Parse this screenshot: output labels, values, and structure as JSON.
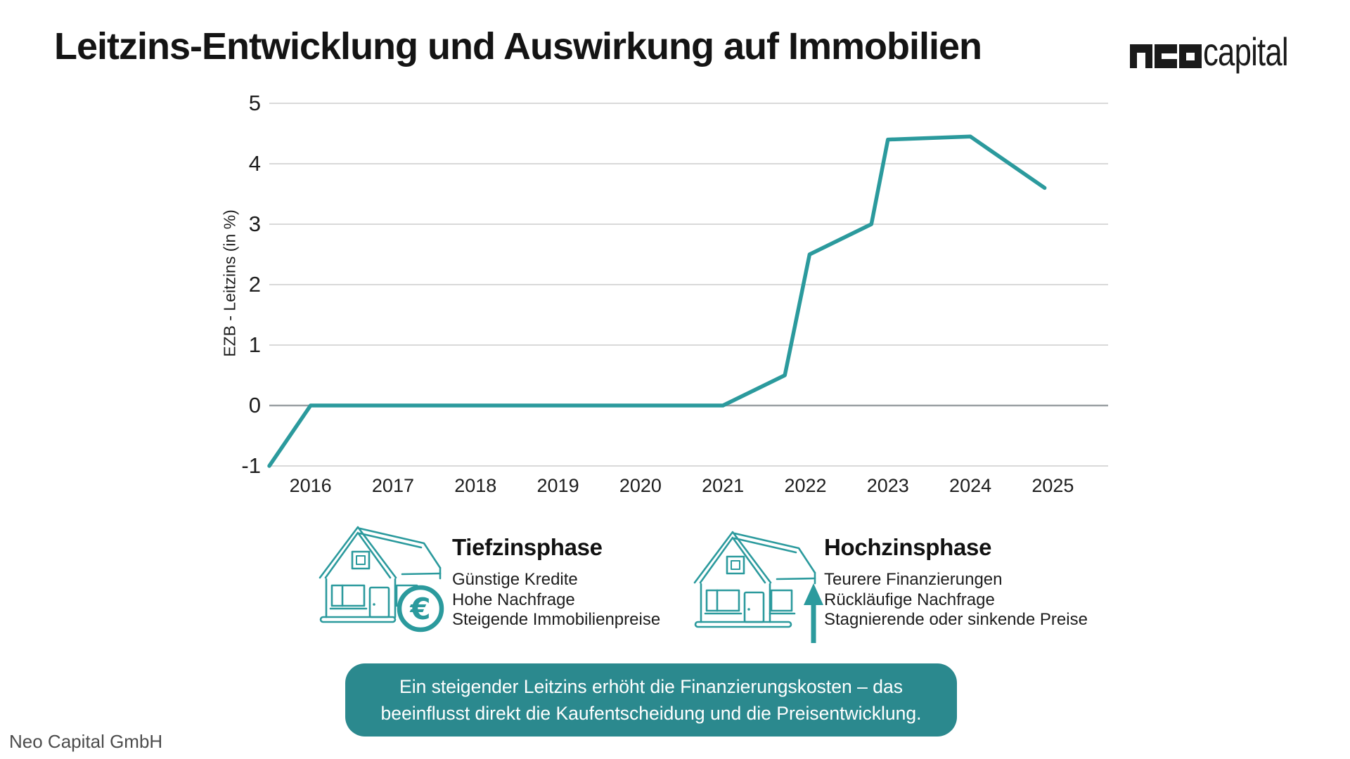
{
  "page": {
    "title": "Leitzins-Entwicklung und Auswirkung auf Immobilien",
    "footer": "Neo Capital GmbH"
  },
  "logo": {
    "mark": "neo",
    "text": "capital"
  },
  "icons": {
    "euro_symbol": "€",
    "house_low": "house-with-euro-coin",
    "house_high": "house-with-rising-arrow"
  },
  "chart_data": {
    "type": "line",
    "ylabel": "EZB - Leitzins (in %)",
    "xlabel": "",
    "x_ticks": [
      "2016",
      "2017",
      "2018",
      "2019",
      "2020",
      "2021",
      "2022",
      "2023",
      "2024",
      "2025"
    ],
    "y_ticks": [
      5,
      4,
      3,
      2,
      1,
      0,
      -1
    ],
    "xlim": [
      2015.5,
      2025.67
    ],
    "ylim": [
      -1,
      5
    ],
    "grid": true,
    "legend": false,
    "series": [
      {
        "color": "#2b9a9d",
        "points": [
          [
            2015.5,
            -1
          ],
          [
            2016,
            0
          ],
          [
            2021,
            0
          ],
          [
            2021.75,
            0.5
          ],
          [
            2022.05,
            2.5
          ],
          [
            2022.8,
            3.0
          ],
          [
            2023,
            4.4
          ],
          [
            2024,
            4.45
          ],
          [
            2024.9,
            3.6
          ]
        ]
      }
    ]
  },
  "phases": {
    "low": {
      "heading": "Tiefzinsphase",
      "items": [
        "Günstige Kredite",
        "Hohe Nachfrage",
        "Steigende Immobilienpreise"
      ]
    },
    "high": {
      "heading": "Hochzinsphase",
      "items": [
        "Teurere Finanzierungen",
        "Rückläufige Nachfrage",
        "Stagnierende oder sinkende Preise"
      ]
    }
  },
  "callout": {
    "line1": "Ein steigender Leitzins erhöht die Finanzierungskosten – das",
    "line2": "beeinflusst direkt die Kaufentscheidung und die Preisentwicklung."
  },
  "colors": {
    "accent": "#2b9a9d",
    "callout_bg": "#2b898e",
    "grid": "#d9d9d9",
    "zero_line": "#9aa0a3",
    "text": "#1c1c1c"
  }
}
